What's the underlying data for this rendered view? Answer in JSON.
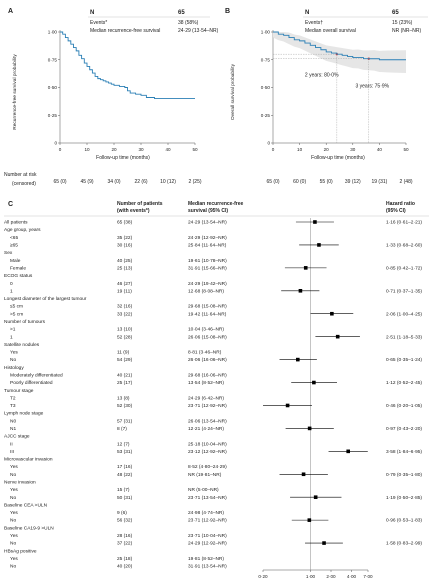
{
  "colors": {
    "km_line": "#2a7fb5",
    "censor_mark": "#d63b3b",
    "band": "#e6e6e6",
    "text": "#222222",
    "forest_point": "#000000"
  },
  "panelA": {
    "label": "A",
    "table": {
      "header": "N",
      "n": "65",
      "events_label": "Events*",
      "events": "38 (58%)",
      "median_label": "Median recurrence-free survival",
      "median": "24·29 (13·54–NR)"
    },
    "ylabel": "Recurrence-free survival probability",
    "xlabel": "Follow-up time (months)",
    "yticks": [
      "0",
      "0·25",
      "0·50",
      "0·75",
      "1·00"
    ],
    "xticks": [
      "0",
      "10",
      "20",
      "30",
      "40",
      "50"
    ]
  },
  "panelB": {
    "label": "B",
    "table": {
      "header": "N",
      "n": "65",
      "events_label": "Events†",
      "events": "15 (23%)",
      "median_label": "Median overall survival",
      "median": "NR (NR–NR)"
    },
    "ylabel": "Overall survival probability",
    "xlabel": "Follow-up time (months)",
    "yticks": [
      "0",
      "0·25",
      "0·50",
      "0·75",
      "1·00"
    ],
    "xticks": [
      "0",
      "10",
      "20",
      "30",
      "40",
      "50"
    ],
    "annotations": [
      "2 years: 80·0%",
      "3 years: 75·9%"
    ]
  },
  "risk": {
    "title": "Number at risk",
    "sub": "(censored)",
    "a": [
      "65 (0)",
      "45 (9)",
      "34 (0)",
      "22 (6)",
      "10 (12)",
      "2 (25)"
    ],
    "b": [
      "65 (0)",
      "60 (0)",
      "55 (0)",
      "39 (12)",
      "19 (31)",
      "2 (48)"
    ]
  },
  "panelC": {
    "label": "C",
    "col_patients": [
      "Number of patients",
      "(with events*)"
    ],
    "col_median": [
      "Median recurrence-free",
      "survival (95% CI)"
    ],
    "col_hr": [
      "Hazard ratio",
      "(95% CI)"
    ],
    "xticks": [
      "0·20",
      "1·00",
      "2·00",
      "4·00",
      "7·00"
    ],
    "rows": [
      {
        "label": "All patients",
        "type": "item",
        "n": "65 (38)",
        "median": "24·29 (13·54–NR)",
        "hr": "1·16 (0·61–2·21)"
      },
      {
        "label": "Age group, years",
        "type": "header",
        "n": "",
        "median": "",
        "hr": ""
      },
      {
        "label": "<65",
        "type": "item",
        "n": "35 (22)",
        "median": "24·29 (12·92–NR)",
        "hr": ""
      },
      {
        "label": "≥65",
        "type": "item",
        "n": "30 (16)",
        "median": "25·84 (11·64–NR)",
        "hr": "1·33 (0·68–2·60)"
      },
      {
        "label": "Sex",
        "type": "header",
        "n": "",
        "median": "",
        "hr": ""
      },
      {
        "label": "Male",
        "type": "item",
        "n": "40 (25)",
        "median": "19·61 (10·78–NR)",
        "hr": ""
      },
      {
        "label": "Female",
        "type": "item",
        "n": "25 (13)",
        "median": "31·91 (15·66–NR)",
        "hr": "0·85 (0·42–1·72)"
      },
      {
        "label": "ECOG status",
        "type": "header",
        "n": "",
        "median": "",
        "hr": ""
      },
      {
        "label": "0",
        "type": "item",
        "n": "46 (27)",
        "median": "24·29 (19·42–NR)",
        "hr": ""
      },
      {
        "label": "1",
        "type": "item",
        "n": "19 (11)",
        "median": "12·68 (8·08–NR)",
        "hr": "0·71 (0·37–1·35)"
      },
      {
        "label": "Longest diameter of the largest tumour",
        "type": "header",
        "n": "",
        "median": "",
        "hr": ""
      },
      {
        "label": "≤5 cm",
        "type": "item",
        "n": "32 (16)",
        "median": "29·68 (15·08–NR)",
        "hr": ""
      },
      {
        "label": ">5 cm",
        "type": "item",
        "n": "33 (22)",
        "median": "19·42 (11·64–NR)",
        "hr": "2·06 (1·00–4·25)"
      },
      {
        "label": "Number of tumours",
        "type": "header",
        "n": "",
        "median": "",
        "hr": ""
      },
      {
        "label": ">1",
        "type": "item",
        "n": "13 (10)",
        "median": "10·04 (3·46–NR)",
        "hr": ""
      },
      {
        "label": "1",
        "type": "item",
        "n": "52 (28)",
        "median": "26·06 (15·08–NR)",
        "hr": "2·51 (1·18–5·33)"
      },
      {
        "label": "Satellite nodules",
        "type": "header",
        "n": "",
        "median": "",
        "hr": ""
      },
      {
        "label": "Yes",
        "type": "item",
        "n": "11 (9)",
        "median": "8·81 (3·46–NR)",
        "hr": ""
      },
      {
        "label": "No",
        "type": "item",
        "n": "54 (29)",
        "median": "26·06 (16·06–NR)",
        "hr": "0·65 (0·35–1·24)"
      },
      {
        "label": "Histology",
        "type": "header",
        "n": "",
        "median": "",
        "hr": ""
      },
      {
        "label": "Moderately differentiated",
        "type": "item",
        "n": "40 (21)",
        "median": "29·68 (16·06–NR)",
        "hr": ""
      },
      {
        "label": "Poorly differentiated",
        "type": "item",
        "n": "25 (17)",
        "median": "13·54 (8·52–NR)",
        "hr": "1·12 (0·52–2·45)"
      },
      {
        "label": "Tumour stage",
        "type": "header",
        "n": "",
        "median": "",
        "hr": ""
      },
      {
        "label": "T2",
        "type": "item",
        "n": "13 (8)",
        "median": "24·29 (6·42–NR)",
        "hr": ""
      },
      {
        "label": "T3",
        "type": "item",
        "n": "52 (30)",
        "median": "23·71 (12·92–NR)",
        "hr": "0·46 (0·20–1·05)"
      },
      {
        "label": "Lymph node stage",
        "type": "header",
        "n": "",
        "median": "",
        "hr": ""
      },
      {
        "label": "N0",
        "type": "item",
        "n": "57 (31)",
        "median": "26·06 (13·54–NR)",
        "hr": ""
      },
      {
        "label": "N1",
        "type": "item",
        "n": "8 (7)",
        "median": "12·21 (4·24–NR)",
        "hr": "0·97 (0·43–2·20)"
      },
      {
        "label": "AJCC stage",
        "type": "header",
        "n": "",
        "median": "",
        "hr": ""
      },
      {
        "label": "II",
        "type": "item",
        "n": "12 (7)",
        "median": "25·18 (10·04–NR)",
        "hr": ""
      },
      {
        "label": "III",
        "type": "item",
        "n": "53 (31)",
        "median": "23·12 (12·92–NR)",
        "hr": "3·58 (1·84–6·95)"
      },
      {
        "label": "Microvascular invasion",
        "type": "header",
        "n": "",
        "median": "",
        "hr": ""
      },
      {
        "label": "Yes",
        "type": "item",
        "n": "17 (16)",
        "median": "8·52 (4·80–24·29)",
        "hr": ""
      },
      {
        "label": "No",
        "type": "item",
        "n": "48 (22)",
        "median": "NR (19·81–NR)",
        "hr": "0·79 (0·35–1·80)"
      },
      {
        "label": "Nerve invasion",
        "type": "header",
        "n": "",
        "median": "",
        "hr": ""
      },
      {
        "label": "Yes",
        "type": "item",
        "n": "15 (7)",
        "median": "NR (5·00–NR)",
        "hr": ""
      },
      {
        "label": "No",
        "type": "item",
        "n": "50 (31)",
        "median": "23·71 (13·54–NR)",
        "hr": "1·19 (0·50–2·85)"
      },
      {
        "label": "Baseline CEA >ULN",
        "type": "header",
        "n": "",
        "median": "",
        "hr": ""
      },
      {
        "label": "Yes",
        "type": "item",
        "n": "9 (6)",
        "median": "24·98 (4·74–NR)",
        "hr": ""
      },
      {
        "label": "No",
        "type": "item",
        "n": "56 (32)",
        "median": "23·71 (12·92–NR)",
        "hr": "0·96 (0·53–1·83)"
      },
      {
        "label": "Baseline CA19-9 >ULN",
        "type": "header",
        "n": "",
        "median": "",
        "hr": ""
      },
      {
        "label": "Yes",
        "type": "item",
        "n": "28 (16)",
        "median": "23·71 (10·04–NR)",
        "hr": ""
      },
      {
        "label": "No",
        "type": "item",
        "n": "37 (22)",
        "median": "24·29 (12·92–NR)",
        "hr": "1·58 (0·83–2·99)"
      },
      {
        "label": "HBsAg positive",
        "type": "header",
        "n": "",
        "median": "",
        "hr": ""
      },
      {
        "label": "Yes",
        "type": "item",
        "n": "25 (18)",
        "median": "19·81 (8·52–NR)",
        "hr": ""
      },
      {
        "label": "No",
        "type": "item",
        "n": "40 (20)",
        "median": "31·91 (13·54–NR)",
        "hr": ""
      }
    ]
  },
  "chart_data": [
    {
      "type": "line",
      "xlabel": "Follow-up time (months)",
      "ylabel": "Recurrence-free survival probability",
      "xlim": [
        0,
        50
      ],
      "ylim": [
        0,
        1
      ],
      "x": [
        0,
        1,
        2,
        3,
        4,
        5,
        6,
        7,
        8,
        9,
        10,
        11,
        12,
        13,
        14,
        15,
        16,
        17,
        18,
        19,
        20,
        22,
        24,
        25,
        26,
        28,
        30,
        32,
        35,
        40,
        45,
        50
      ],
      "y": [
        1.0,
        0.98,
        0.95,
        0.92,
        0.89,
        0.86,
        0.83,
        0.79,
        0.76,
        0.72,
        0.69,
        0.66,
        0.63,
        0.6,
        0.58,
        0.57,
        0.56,
        0.55,
        0.54,
        0.53,
        0.52,
        0.51,
        0.5,
        0.47,
        0.45,
        0.44,
        0.43,
        0.41,
        0.4,
        0.4,
        0.4,
        0.4
      ]
    },
    {
      "type": "line",
      "xlabel": "Follow-up time (months)",
      "ylabel": "Overall survival probability",
      "xlim": [
        0,
        50
      ],
      "ylim": [
        0,
        1
      ],
      "x": [
        0,
        2,
        4,
        6,
        8,
        10,
        12,
        14,
        16,
        18,
        20,
        22,
        24,
        26,
        28,
        30,
        32,
        34,
        36,
        38,
        40,
        42,
        45,
        50
      ],
      "y": [
        1.0,
        0.98,
        0.97,
        0.95,
        0.93,
        0.92,
        0.9,
        0.88,
        0.86,
        0.84,
        0.82,
        0.81,
        0.8,
        0.79,
        0.78,
        0.77,
        0.77,
        0.76,
        0.759,
        0.759,
        0.75,
        0.75,
        0.75,
        0.75
      ]
    },
    {
      "type": "scatter",
      "xscale": "log",
      "xlim": [
        0.2,
        7
      ],
      "xlabel": "",
      "x": [
        1.16,
        1.33,
        0.85,
        0.71,
        2.06,
        2.51,
        0.65,
        1.12,
        0.46,
        0.97,
        3.58,
        0.79,
        1.19,
        0.96,
        1.58
      ],
      "lower": [
        0.61,
        0.68,
        0.42,
        0.37,
        1.0,
        1.18,
        0.35,
        0.52,
        0.2,
        0.43,
        1.84,
        0.35,
        0.5,
        0.53,
        0.83
      ],
      "upper": [
        2.21,
        2.6,
        1.72,
        1.35,
        4.25,
        5.33,
        1.24,
        2.45,
        1.05,
        2.2,
        6.95,
        1.8,
        2.85,
        1.83,
        2.99
      ]
    }
  ]
}
